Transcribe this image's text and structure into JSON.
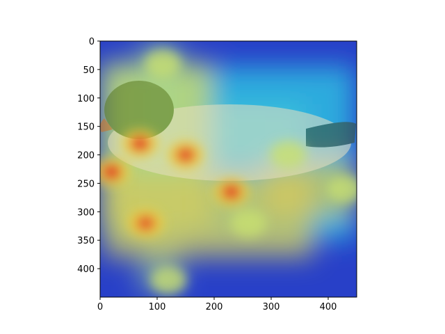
{
  "chart_data": {
    "type": "heatmap",
    "title": "",
    "xlabel": "",
    "ylabel": "",
    "xlim": [
      0,
      450
    ],
    "ylim": [
      450,
      0
    ],
    "y_axis_inverted": true,
    "x_ticks": [
      0,
      100,
      200,
      300,
      400
    ],
    "y_ticks": [
      0,
      50,
      100,
      150,
      200,
      250,
      300,
      350,
      400
    ],
    "x_tick_labels": [
      "0",
      "100",
      "200",
      "300",
      "400"
    ],
    "y_tick_labels": [
      "0",
      "50",
      "100",
      "150",
      "200",
      "250",
      "300",
      "350",
      "400"
    ],
    "grid": false,
    "legend": "none",
    "colormap": "jet",
    "background_image": "duck-on-water-photo",
    "colors": {
      "low": "#1f3fd0",
      "mid_low": "#28b8e8",
      "mid": "#c8e070",
      "mid_high": "#f0d040",
      "high": "#e02020"
    },
    "hotspots": [
      {
        "x": 20,
        "y": 230,
        "level": 1.0
      },
      {
        "x": 70,
        "y": 180,
        "level": 0.95
      },
      {
        "x": 150,
        "y": 200,
        "level": 0.85
      },
      {
        "x": 230,
        "y": 265,
        "level": 0.9
      },
      {
        "x": 80,
        "y": 320,
        "level": 0.75
      },
      {
        "x": 260,
        "y": 320,
        "level": 0.7
      },
      {
        "x": 110,
        "y": 40,
        "level": 0.6
      },
      {
        "x": 120,
        "y": 420,
        "level": 0.55
      },
      {
        "x": 330,
        "y": 200,
        "level": 0.55
      },
      {
        "x": 430,
        "y": 260,
        "level": 0.6
      }
    ]
  }
}
